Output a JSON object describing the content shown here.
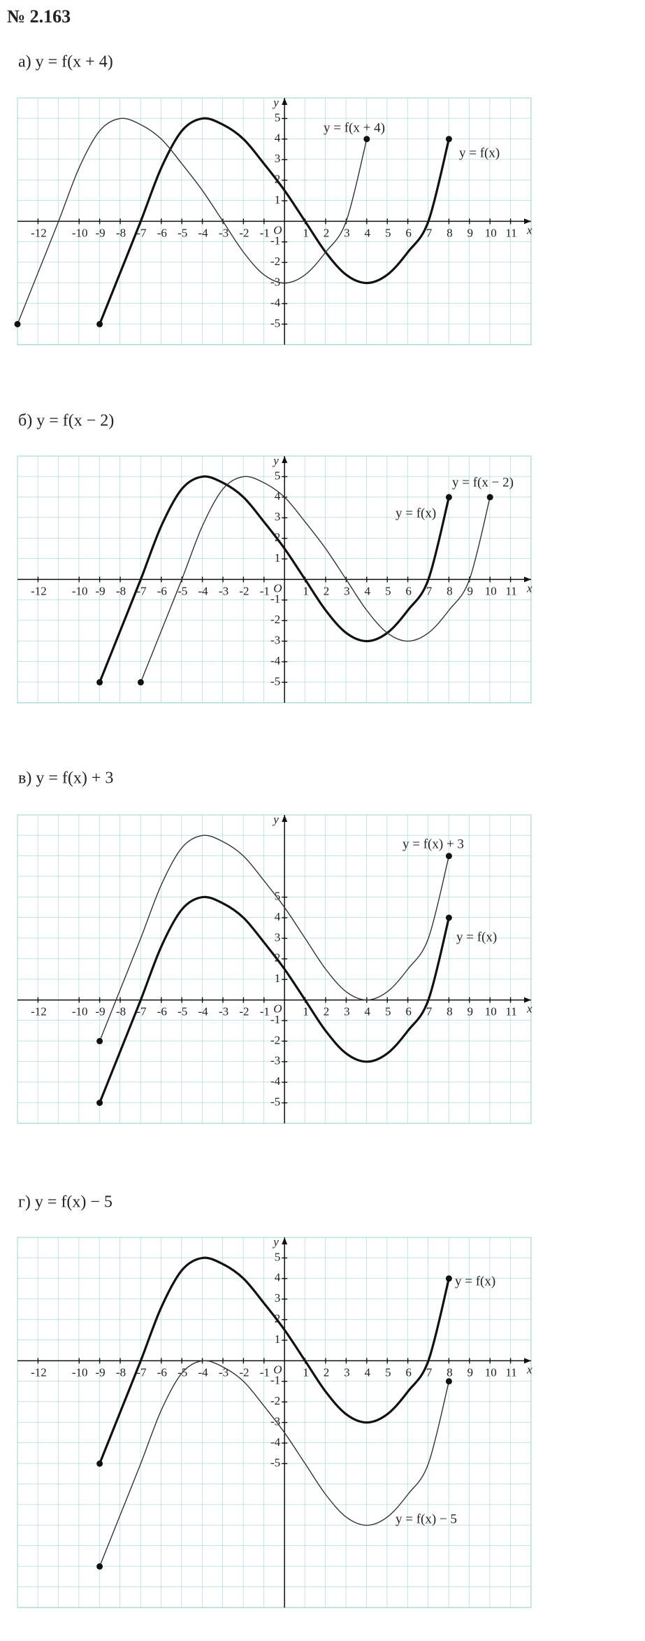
{
  "title": "№ 2.163",
  "chart_data": [
    {
      "type": "line",
      "title": "а)  y = f(x + 4)",
      "x_label": "x",
      "y_label": "y",
      "origin_label": "O",
      "xlim": [
        -13,
        12
      ],
      "ylim": [
        -6,
        6
      ],
      "xticks": [
        -12,
        -10,
        -9,
        -8,
        -7,
        -6,
        -5,
        -4,
        -3,
        -2,
        -1,
        1,
        2,
        3,
        4,
        5,
        6,
        7,
        8,
        9,
        10,
        11
      ],
      "yticks": [
        -5,
        -4,
        -3,
        -2,
        -1,
        1,
        2,
        3,
        4,
        5
      ],
      "grid": true,
      "series": [
        {
          "name": "y = f(x)",
          "color": "#111",
          "x": [
            -9,
            -8,
            -7,
            -6,
            -5,
            -4,
            -3,
            -2,
            -1,
            0,
            1,
            2,
            3,
            4,
            5,
            6,
            7,
            8
          ],
          "values": [
            -5,
            -2.5,
            0,
            2.6,
            4.4,
            5,
            4.7,
            4,
            2.8,
            1.5,
            0,
            -1.5,
            -2.6,
            -3,
            -2.6,
            -1.5,
            0,
            4
          ]
        },
        {
          "name": "y = f(x + 4)",
          "color": "#333",
          "x": [
            -13,
            -12,
            -11,
            -10,
            -9,
            -8,
            -7,
            -6,
            -5,
            -4,
            -3,
            -2,
            -1,
            0,
            1,
            2,
            3,
            4
          ],
          "values": [
            -5,
            -2.5,
            0,
            2.6,
            4.4,
            5,
            4.7,
            4,
            2.8,
            1.5,
            0,
            -1.5,
            -2.6,
            -3,
            -2.6,
            -1.5,
            0,
            4
          ]
        }
      ]
    },
    {
      "type": "line",
      "title": "б)  y = f(x − 2)",
      "x_label": "x",
      "y_label": "y",
      "origin_label": "O",
      "xlim": [
        -13,
        12
      ],
      "ylim": [
        -6,
        6
      ],
      "xticks": [
        -12,
        -10,
        -9,
        -8,
        -7,
        -6,
        -5,
        -4,
        -3,
        -2,
        -1,
        1,
        2,
        3,
        4,
        5,
        6,
        7,
        8,
        9,
        10,
        11
      ],
      "yticks": [
        -5,
        -4,
        -3,
        -2,
        -1,
        1,
        2,
        3,
        4,
        5
      ],
      "grid": true,
      "series": [
        {
          "name": "y = f(x)",
          "color": "#111",
          "x": [
            -9,
            -8,
            -7,
            -6,
            -5,
            -4,
            -3,
            -2,
            -1,
            0,
            1,
            2,
            3,
            4,
            5,
            6,
            7,
            8
          ],
          "values": [
            -5,
            -2.5,
            0,
            2.6,
            4.4,
            5,
            4.7,
            4,
            2.8,
            1.5,
            0,
            -1.5,
            -2.6,
            -3,
            -2.6,
            -1.5,
            0,
            4
          ]
        },
        {
          "name": "y = f(x − 2)",
          "color": "#333",
          "x": [
            -7,
            -6,
            -5,
            -4,
            -3,
            -2,
            -1,
            0,
            1,
            2,
            3,
            4,
            5,
            6,
            7,
            8,
            9,
            10
          ],
          "values": [
            -5,
            -2.5,
            0,
            2.6,
            4.4,
            5,
            4.7,
            4,
            2.8,
            1.5,
            0,
            -1.5,
            -2.6,
            -3,
            -2.6,
            -1.5,
            0,
            4
          ]
        }
      ]
    },
    {
      "type": "line",
      "title": "в)  y = f(x) + 3",
      "x_label": "x",
      "y_label": "y",
      "origin_label": "O",
      "xlim": [
        -13,
        12
      ],
      "ylim": [
        -6,
        9
      ],
      "xticks": [
        -12,
        -10,
        -9,
        -8,
        -7,
        -6,
        -5,
        -4,
        -3,
        -2,
        -1,
        1,
        2,
        3,
        4,
        5,
        6,
        7,
        8,
        9,
        10,
        11
      ],
      "yticks": [
        -5,
        -4,
        -3,
        -2,
        -1,
        1,
        2,
        3,
        4,
        5
      ],
      "grid": true,
      "series": [
        {
          "name": "y = f(x)",
          "color": "#111",
          "x": [
            -9,
            -8,
            -7,
            -6,
            -5,
            -4,
            -3,
            -2,
            -1,
            0,
            1,
            2,
            3,
            4,
            5,
            6,
            7,
            8
          ],
          "values": [
            -5,
            -2.5,
            0,
            2.6,
            4.4,
            5,
            4.7,
            4,
            2.8,
            1.5,
            0,
            -1.5,
            -2.6,
            -3,
            -2.6,
            -1.5,
            0,
            4
          ]
        },
        {
          "name": "y = f(x) + 3",
          "color": "#333",
          "x": [
            -9,
            -8,
            -7,
            -6,
            -5,
            -4,
            -3,
            -2,
            -1,
            0,
            1,
            2,
            3,
            4,
            5,
            6,
            7,
            8
          ],
          "values": [
            -2,
            0.5,
            3,
            5.6,
            7.4,
            8,
            7.7,
            7,
            5.8,
            4.5,
            3,
            1.5,
            0.4,
            0,
            0.4,
            1.5,
            3,
            7
          ]
        }
      ]
    },
    {
      "type": "line",
      "title": "г)  y = f(x) − 5",
      "x_label": "x",
      "y_label": "y",
      "origin_label": "O",
      "xlim": [
        -13,
        12
      ],
      "ylim": [
        -12,
        6
      ],
      "xticks": [
        -12,
        -10,
        -9,
        -8,
        -7,
        -6,
        -5,
        -4,
        -3,
        -2,
        -1,
        1,
        2,
        3,
        4,
        5,
        6,
        7,
        8,
        9,
        10,
        11
      ],
      "yticks": [
        -5,
        -4,
        -3,
        -2,
        -1,
        1,
        2,
        3,
        4,
        5
      ],
      "grid": true,
      "series": [
        {
          "name": "y = f(x)",
          "color": "#111",
          "x": [
            -9,
            -8,
            -7,
            -6,
            -5,
            -4,
            -3,
            -2,
            -1,
            0,
            1,
            2,
            3,
            4,
            5,
            6,
            7,
            8
          ],
          "values": [
            -5,
            -2.5,
            0,
            2.6,
            4.4,
            5,
            4.7,
            4,
            2.8,
            1.5,
            0,
            -1.5,
            -2.6,
            -3,
            -2.6,
            -1.5,
            0,
            4
          ]
        },
        {
          "name": "y = f(x) − 5",
          "color": "#333",
          "x": [
            -9,
            -8,
            -7,
            -6,
            -5,
            -4,
            -3,
            -2,
            -1,
            0,
            1,
            2,
            3,
            4,
            5,
            6,
            7,
            8
          ],
          "values": [
            -10,
            -7.5,
            -5,
            -2.4,
            -0.6,
            0,
            -0.3,
            -1,
            -2.2,
            -3.5,
            -5,
            -6.5,
            -7.6,
            -8,
            -7.6,
            -6.5,
            -5,
            -1
          ]
        }
      ]
    }
  ]
}
